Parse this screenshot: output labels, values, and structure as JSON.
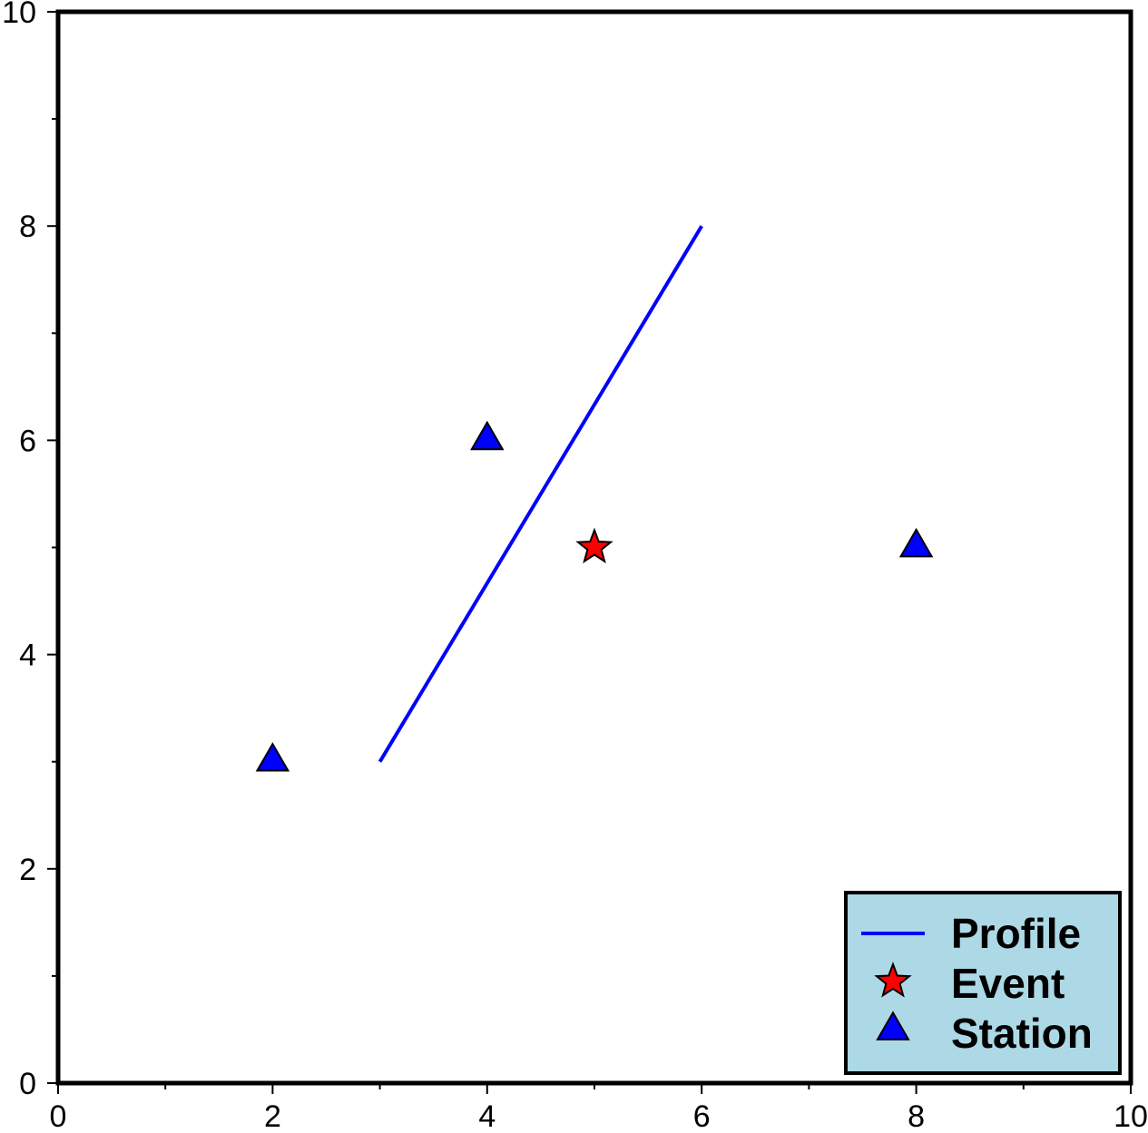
{
  "chart_data": {
    "type": "scatter",
    "title": "",
    "xlabel": "",
    "ylabel": "",
    "xlim": [
      0,
      10
    ],
    "ylim": [
      0,
      10
    ],
    "x_ticks": [
      "0",
      "2",
      "4",
      "6",
      "8",
      "10"
    ],
    "y_ticks": [
      "0",
      "2",
      "4",
      "6",
      "8",
      "10"
    ],
    "grid": false,
    "legend_position": "bottom-right",
    "legend_background": "#add8e6",
    "series": [
      {
        "name": "Profile",
        "kind": "line",
        "color": "#0000ff",
        "points": [
          [
            3,
            3
          ],
          [
            6,
            8
          ]
        ]
      },
      {
        "name": "Event",
        "kind": "star",
        "color": "#ff0000",
        "points": [
          [
            5,
            5
          ]
        ]
      },
      {
        "name": "Station",
        "kind": "triangle",
        "color": "#0000ff",
        "points": [
          [
            2,
            3
          ],
          [
            4,
            6
          ],
          [
            8,
            5
          ]
        ]
      }
    ]
  }
}
